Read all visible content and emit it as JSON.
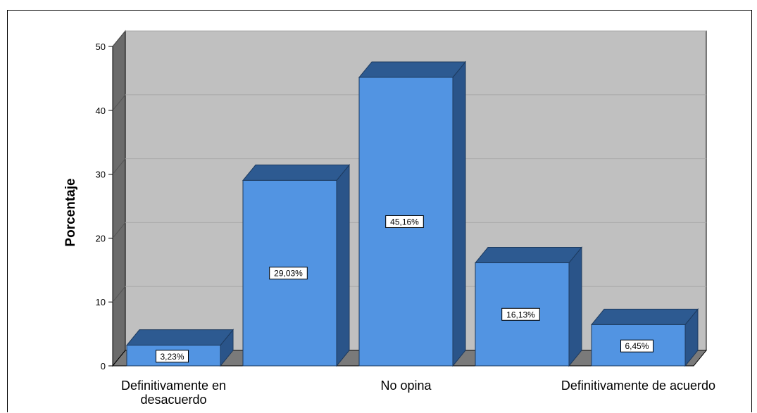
{
  "chart_data": {
    "type": "bar",
    "categories": [
      "Definitivamente en desacuerdo",
      "",
      "No opina",
      "",
      "Definitivamente de acuerdo"
    ],
    "category_label_lines": [
      [
        "Definitivamente en",
        "desacuerdo"
      ],
      [],
      [
        "No opina"
      ],
      [],
      [
        "Definitivamente de acuerdo"
      ]
    ],
    "values": [
      3.23,
      29.03,
      45.16,
      16.13,
      6.45
    ],
    "data_labels": [
      "3,23%",
      "29,03%",
      "45,16%",
      "16,13%",
      "6,45%"
    ],
    "ylabel": "Porcentaje",
    "xlabel": "",
    "ylim": [
      0,
      50
    ],
    "yticks": [
      0,
      10,
      20,
      30,
      40,
      50
    ],
    "grid": true,
    "style": "3d"
  },
  "colors": {
    "bar_front": "#5294e2",
    "bar_top": "#2d5a91",
    "bar_side": "#2a5489",
    "plot_back": "#c0c0c0",
    "plot_left_wall": "#6b6b6b",
    "plot_floor": "#7a7a7a",
    "gridline": "#a8a8a8"
  }
}
